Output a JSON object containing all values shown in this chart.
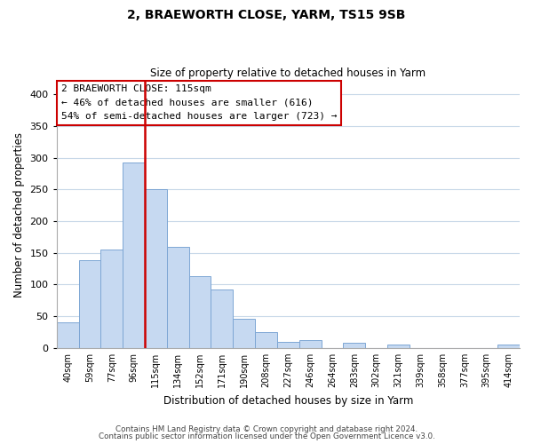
{
  "title": "2, BRAEWORTH CLOSE, YARM, TS15 9SB",
  "subtitle": "Size of property relative to detached houses in Yarm",
  "xlabel": "Distribution of detached houses by size in Yarm",
  "ylabel": "Number of detached properties",
  "bar_labels": [
    "40sqm",
    "59sqm",
    "77sqm",
    "96sqm",
    "115sqm",
    "134sqm",
    "152sqm",
    "171sqm",
    "190sqm",
    "208sqm",
    "227sqm",
    "246sqm",
    "264sqm",
    "283sqm",
    "302sqm",
    "321sqm",
    "339sqm",
    "358sqm",
    "377sqm",
    "395sqm",
    "414sqm"
  ],
  "bar_values": [
    40,
    139,
    155,
    292,
    250,
    160,
    113,
    92,
    46,
    25,
    10,
    13,
    0,
    8,
    0,
    5,
    0,
    0,
    0,
    0,
    5
  ],
  "bar_color": "#c6d9f1",
  "bar_edge_color": "#7da6d4",
  "vline_x_index": 4,
  "vline_color": "#cc0000",
  "annotation_title": "2 BRAEWORTH CLOSE: 115sqm",
  "annotation_line1": "← 46% of detached houses are smaller (616)",
  "annotation_line2": "54% of semi-detached houses are larger (723) →",
  "ylim": [
    0,
    420
  ],
  "yticks": [
    0,
    50,
    100,
    150,
    200,
    250,
    300,
    350,
    400
  ],
  "footer1": "Contains HM Land Registry data © Crown copyright and database right 2024.",
  "footer2": "Contains public sector information licensed under the Open Government Licence v3.0.",
  "bg_color": "#ffffff",
  "grid_color": "#c8d8e8"
}
